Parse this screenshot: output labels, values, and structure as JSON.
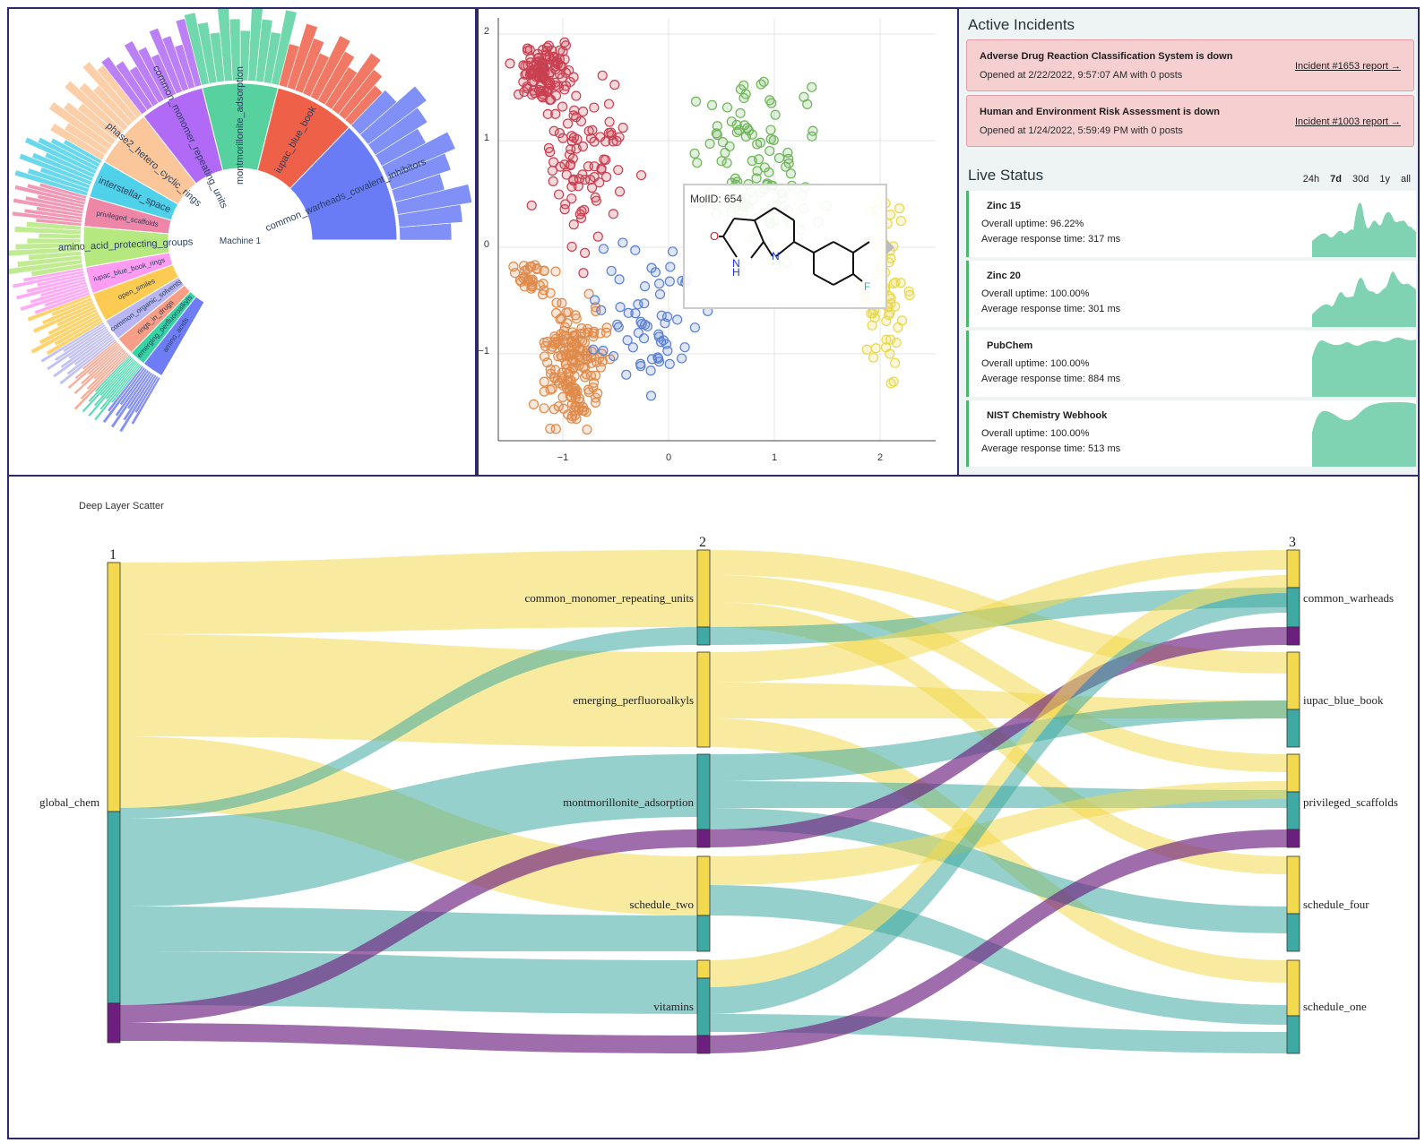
{
  "sunburst": {
    "center_label": "Machine 1",
    "ring": [
      {
        "label": "interstellar_space",
        "color": "#4fd1e9"
      },
      {
        "label": "privileged_scaffolds",
        "color": "#ee86a8"
      },
      {
        "label": "amino_acid_protecting_groups",
        "color": "#b6e880"
      },
      {
        "label": "iupac_blue_book_rings",
        "color": "#fe9cf2"
      },
      {
        "label": "open_smiles",
        "color": "#fecb52"
      },
      {
        "label": "common_organic_solvents",
        "color": "#b7b6f2"
      },
      {
        "label": "rings_in_drugs",
        "color": "#f79f86"
      },
      {
        "label": "emerging_perfluoroalkyls",
        "color": "#36d4a4"
      },
      {
        "label": "amino_acids",
        "color": "#6e7cf5"
      },
      {
        "label": "phase2_hetero_cyclic_rings",
        "color": "#fbc79a"
      },
      {
        "label": "common_monomer_repeating_units",
        "color": "#b06af5"
      },
      {
        "label": "montmorillonite_adsorption",
        "color": "#57d19e"
      },
      {
        "label": "iupac_blue_book",
        "color": "#ef6049"
      },
      {
        "label": "common_warheads_covalent_inhibitors",
        "color": "#6a7cf5"
      }
    ]
  },
  "scatter": {
    "x_ticks": [
      "−1",
      "0",
      "1",
      "2"
    ],
    "y_ticks": [
      "2",
      "1",
      "0",
      "−1"
    ],
    "tooltip_label": "MolID: 654",
    "atom_labels": {
      "o": "O",
      "nh": "N",
      "h": "H",
      "n": "N",
      "f": "F"
    },
    "cluster_colors": [
      "#c94050",
      "#e08a4a",
      "#5a7fd4",
      "#6fb45a",
      "#e9d84a"
    ]
  },
  "status": {
    "incidents_title": "Active Incidents",
    "incidents": [
      {
        "title": "Adverse Drug Reaction Classification System is down",
        "opened": "Opened at 2/22/2022, 9:57:07 AM with 0 posts",
        "link": "Incident #1653 report →"
      },
      {
        "title": "Human and Environment Risk Assessment is down",
        "opened": "Opened at 1/24/2022, 5:59:49 PM with 0 posts",
        "link": "Incident #1003 report →"
      }
    ],
    "live_title": "Live Status",
    "ranges": [
      "24h",
      "7d",
      "30d",
      "1y",
      "all"
    ],
    "active_range": "7d",
    "services": [
      {
        "name": "Zinc 15",
        "uptime": "Overall uptime:  96.22%",
        "response": "Average response time:  317 ms"
      },
      {
        "name": "Zinc 20",
        "uptime": "Overall uptime:  100.00%",
        "response": "Average response time:  301 ms"
      },
      {
        "name": "PubChem",
        "uptime": "Overall uptime:  100.00%",
        "response": "Average response time:  884 ms"
      },
      {
        "name": "NIST Chemistry Webhook",
        "uptime": "Overall uptime:  100.00%",
        "response": "Average response time:  513 ms"
      }
    ],
    "area_color": "#7fd3b2"
  },
  "sankey": {
    "title": "Deep Layer Scatter",
    "columns": [
      "1",
      "2",
      "3"
    ],
    "source_label": "global_chem",
    "middle_labels": [
      "common_monomer_repeating_units",
      "emerging_perfluoroalkyls",
      "montmorillonite_adsorption",
      "schedule_two",
      "vitamins"
    ],
    "right_labels": [
      "common_warheads",
      "iupac_blue_book",
      "privileged_scaffolds",
      "schedule_four",
      "schedule_one"
    ],
    "colors": {
      "yellow": "#f2d94e",
      "teal": "#3fa9a3",
      "purple": "#6d1f7f"
    }
  }
}
